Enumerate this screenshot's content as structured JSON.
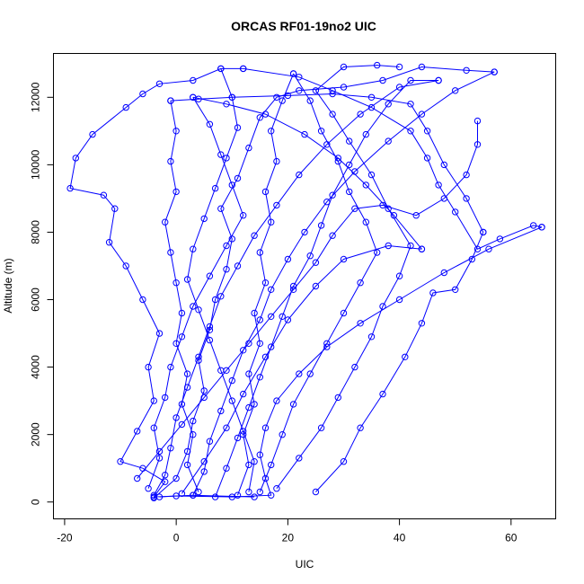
{
  "chart_data": {
    "type": "scatter",
    "title": "ORCAS RF01-19no2 UIC",
    "xlabel": "UIC",
    "ylabel": "Altitude (m)",
    "xlim": [
      -22,
      68
    ],
    "ylim": [
      -500,
      13300
    ],
    "xticks": [
      -20,
      0,
      20,
      40,
      60
    ],
    "yticks": [
      0,
      2000,
      4000,
      6000,
      8000,
      10000,
      12000
    ],
    "grid": false,
    "legend": "none",
    "series_color": "#0000FF",
    "series": [
      {
        "values": [
          {
            "x": 14,
            "y": 150
          },
          {
            "x": 3,
            "y": 200
          },
          {
            "x": -4,
            "y": 150
          },
          {
            "x": -2,
            "y": 600
          },
          {
            "x": -6,
            "y": 1000
          },
          {
            "x": -10,
            "y": 1200
          },
          {
            "x": -7,
            "y": 2100
          },
          {
            "x": -4,
            "y": 3000
          },
          {
            "x": -5,
            "y": 4000
          },
          {
            "x": -3,
            "y": 5000
          },
          {
            "x": -6,
            "y": 6000
          },
          {
            "x": -9,
            "y": 7000
          },
          {
            "x": -12,
            "y": 7700
          },
          {
            "x": -11,
            "y": 8700
          },
          {
            "x": -13,
            "y": 9100
          },
          {
            "x": -19,
            "y": 9300
          },
          {
            "x": -18,
            "y": 10200
          },
          {
            "x": -15,
            "y": 10900
          },
          {
            "x": -9,
            "y": 11700
          },
          {
            "x": -6,
            "y": 12100
          },
          {
            "x": -3,
            "y": 12400
          },
          {
            "x": 3,
            "y": 12500
          },
          {
            "x": 8,
            "y": 12850
          },
          {
            "x": 12,
            "y": 12850
          }
        ]
      },
      {
        "values": [
          {
            "x": 12,
            "y": 12850
          },
          {
            "x": 22,
            "y": 12600
          },
          {
            "x": 28,
            "y": 12200
          },
          {
            "x": 35,
            "y": 11700
          },
          {
            "x": 42,
            "y": 11000
          },
          {
            "x": 45,
            "y": 10200
          },
          {
            "x": 47,
            "y": 9400
          },
          {
            "x": 50,
            "y": 8600
          },
          {
            "x": 54,
            "y": 7500
          },
          {
            "x": 58,
            "y": 7800
          },
          {
            "x": 64,
            "y": 8200
          },
          {
            "x": 65.5,
            "y": 8150
          }
        ]
      },
      {
        "values": [
          {
            "x": 65.5,
            "y": 8150
          },
          {
            "x": 56,
            "y": 7500
          },
          {
            "x": 48,
            "y": 6800
          },
          {
            "x": 40,
            "y": 6000
          },
          {
            "x": 33,
            "y": 5300
          },
          {
            "x": 27,
            "y": 4600
          },
          {
            "x": 22,
            "y": 3800
          },
          {
            "x": 18,
            "y": 3000
          },
          {
            "x": 16,
            "y": 2200
          },
          {
            "x": 15,
            "y": 1400
          },
          {
            "x": 16,
            "y": 700
          },
          {
            "x": 17,
            "y": 200
          },
          {
            "x": 10,
            "y": 150
          },
          {
            "x": 0,
            "y": 180
          },
          {
            "x": -3,
            "y": 150
          }
        ]
      },
      {
        "values": [
          {
            "x": -4,
            "y": 120
          },
          {
            "x": 0,
            "y": 700
          },
          {
            "x": 2,
            "y": 1500
          },
          {
            "x": 3,
            "y": 2400
          },
          {
            "x": 5,
            "y": 3300
          },
          {
            "x": 4,
            "y": 4200
          },
          {
            "x": 6,
            "y": 5100
          },
          {
            "x": 7,
            "y": 6000
          },
          {
            "x": 9,
            "y": 6900
          },
          {
            "x": 10,
            "y": 7800
          },
          {
            "x": 8,
            "y": 8700
          },
          {
            "x": 11,
            "y": 9600
          },
          {
            "x": 13,
            "y": 10500
          },
          {
            "x": 15,
            "y": 11400
          },
          {
            "x": 18,
            "y": 12000
          },
          {
            "x": 22,
            "y": 12200
          },
          {
            "x": 30,
            "y": 12300
          },
          {
            "x": 37,
            "y": 12500
          },
          {
            "x": 44,
            "y": 12900
          },
          {
            "x": 52,
            "y": 12800
          },
          {
            "x": 57,
            "y": 12750
          }
        ]
      },
      {
        "values": [
          {
            "x": 57,
            "y": 12750
          },
          {
            "x": 50,
            "y": 12200
          },
          {
            "x": 44,
            "y": 11500
          },
          {
            "x": 38,
            "y": 10700
          },
          {
            "x": 32,
            "y": 9800
          },
          {
            "x": 27,
            "y": 8900
          },
          {
            "x": 23,
            "y": 8000
          },
          {
            "x": 20,
            "y": 7200
          },
          {
            "x": 17,
            "y": 6300
          },
          {
            "x": 15,
            "y": 5400
          },
          {
            "x": 12,
            "y": 4500
          },
          {
            "x": 10,
            "y": 3600
          },
          {
            "x": 8,
            "y": 2700
          },
          {
            "x": 6,
            "y": 1800
          },
          {
            "x": 5,
            "y": 900
          },
          {
            "x": 3,
            "y": 200
          }
        ]
      },
      {
        "values": [
          {
            "x": 25,
            "y": 300
          },
          {
            "x": 30,
            "y": 1200
          },
          {
            "x": 33,
            "y": 2200
          },
          {
            "x": 37,
            "y": 3200
          },
          {
            "x": 41,
            "y": 4300
          },
          {
            "x": 44,
            "y": 5300
          },
          {
            "x": 46,
            "y": 6200
          },
          {
            "x": 50,
            "y": 6300
          },
          {
            "x": 53,
            "y": 7200
          },
          {
            "x": 55,
            "y": 8000
          }
        ]
      },
      {
        "values": [
          {
            "x": 55,
            "y": 8000
          },
          {
            "x": 52,
            "y": 9000
          },
          {
            "x": 48,
            "y": 10000
          },
          {
            "x": 45,
            "y": 11000
          },
          {
            "x": 42,
            "y": 11800
          },
          {
            "x": 35,
            "y": 12000
          },
          {
            "x": 28,
            "y": 12100
          },
          {
            "x": 20,
            "y": 12050
          },
          {
            "x": 10,
            "y": 12000
          },
          {
            "x": 4,
            "y": 11950
          },
          {
            "x": -1,
            "y": 11900
          }
        ]
      },
      {
        "values": [
          {
            "x": -1,
            "y": 11900
          },
          {
            "x": 0,
            "y": 11000
          },
          {
            "x": -1,
            "y": 10100
          },
          {
            "x": 0,
            "y": 9200
          },
          {
            "x": -2,
            "y": 8300
          },
          {
            "x": -1,
            "y": 7400
          },
          {
            "x": 0,
            "y": 6500
          },
          {
            "x": 1,
            "y": 5600
          },
          {
            "x": 0,
            "y": 4700
          },
          {
            "x": 2,
            "y": 3800
          },
          {
            "x": 1,
            "y": 2900
          },
          {
            "x": 3,
            "y": 2000
          },
          {
            "x": 2,
            "y": 1100
          },
          {
            "x": 4,
            "y": 300
          }
        ]
      },
      {
        "values": [
          {
            "x": 7,
            "y": 150
          },
          {
            "x": 9,
            "y": 1000
          },
          {
            "x": 11,
            "y": 1900
          },
          {
            "x": 13,
            "y": 2800
          },
          {
            "x": 15,
            "y": 3700
          },
          {
            "x": 17,
            "y": 4600
          },
          {
            "x": 19,
            "y": 5500
          },
          {
            "x": 21,
            "y": 6400
          },
          {
            "x": 24,
            "y": 7300
          },
          {
            "x": 26,
            "y": 8200
          },
          {
            "x": 28,
            "y": 9100
          },
          {
            "x": 31,
            "y": 10000
          },
          {
            "x": 34,
            "y": 10900
          },
          {
            "x": 38,
            "y": 11800
          },
          {
            "x": 42,
            "y": 12500
          },
          {
            "x": 47,
            "y": 12500
          }
        ]
      },
      {
        "values": [
          {
            "x": 47,
            "y": 12500
          },
          {
            "x": 40,
            "y": 12300
          },
          {
            "x": 33,
            "y": 11500
          },
          {
            "x": 27,
            "y": 10600
          },
          {
            "x": 22,
            "y": 9700
          },
          {
            "x": 18,
            "y": 8800
          },
          {
            "x": 14,
            "y": 7900
          },
          {
            "x": 11,
            "y": 7000
          },
          {
            "x": 8,
            "y": 6100
          },
          {
            "x": 6,
            "y": 5200
          },
          {
            "x": 4,
            "y": 4300
          },
          {
            "x": 2,
            "y": 3400
          },
          {
            "x": 0,
            "y": 2500
          },
          {
            "x": -1,
            "y": 1600
          },
          {
            "x": -2,
            "y": 800
          },
          {
            "x": -4,
            "y": 200
          }
        ]
      },
      {
        "values": [
          {
            "x": 11,
            "y": 200
          },
          {
            "x": 13,
            "y": 1100
          },
          {
            "x": 12,
            "y": 2000
          },
          {
            "x": 14,
            "y": 2900
          },
          {
            "x": 13,
            "y": 3800
          },
          {
            "x": 15,
            "y": 4700
          },
          {
            "x": 14,
            "y": 5600
          },
          {
            "x": 16,
            "y": 6500
          },
          {
            "x": 15,
            "y": 7400
          },
          {
            "x": 17,
            "y": 8300
          },
          {
            "x": 16,
            "y": 9200
          },
          {
            "x": 18,
            "y": 10100
          },
          {
            "x": 17,
            "y": 11000
          },
          {
            "x": 19,
            "y": 11900
          },
          {
            "x": 21,
            "y": 12700
          }
        ]
      },
      {
        "values": [
          {
            "x": 21,
            "y": 12700
          },
          {
            "x": 24,
            "y": 11900
          },
          {
            "x": 26,
            "y": 11000
          },
          {
            "x": 29,
            "y": 10100
          },
          {
            "x": 31,
            "y": 9200
          },
          {
            "x": 34,
            "y": 8300
          },
          {
            "x": 36,
            "y": 7400
          },
          {
            "x": 33,
            "y": 6500
          },
          {
            "x": 30,
            "y": 5600
          },
          {
            "x": 27,
            "y": 4700
          },
          {
            "x": 24,
            "y": 3800
          },
          {
            "x": 21,
            "y": 2900
          },
          {
            "x": 19,
            "y": 2000
          },
          {
            "x": 17,
            "y": 1100
          },
          {
            "x": 15,
            "y": 300
          }
        ]
      },
      {
        "values": [
          {
            "x": 1,
            "y": 250
          },
          {
            "x": 5,
            "y": 1200
          },
          {
            "x": 9,
            "y": 2200
          },
          {
            "x": 12,
            "y": 3200
          },
          {
            "x": 16,
            "y": 4300
          },
          {
            "x": 20,
            "y": 5400
          },
          {
            "x": 25,
            "y": 6400
          },
          {
            "x": 30,
            "y": 7200
          },
          {
            "x": 38,
            "y": 7600
          },
          {
            "x": 44,
            "y": 7500
          }
        ]
      },
      {
        "values": [
          {
            "x": 44,
            "y": 7500
          },
          {
            "x": 39,
            "y": 8500
          },
          {
            "x": 34,
            "y": 9400
          },
          {
            "x": 29,
            "y": 10200
          },
          {
            "x": 23,
            "y": 10900
          },
          {
            "x": 16,
            "y": 11500
          },
          {
            "x": 9,
            "y": 11800
          },
          {
            "x": 3,
            "y": 12000
          }
        ]
      },
      {
        "values": [
          {
            "x": 3,
            "y": 12000
          },
          {
            "x": 6,
            "y": 11200
          },
          {
            "x": 8,
            "y": 10300
          },
          {
            "x": 10,
            "y": 9400
          },
          {
            "x": 12,
            "y": 8500
          },
          {
            "x": 9,
            "y": 7600
          },
          {
            "x": 6,
            "y": 6700
          },
          {
            "x": 3,
            "y": 5800
          },
          {
            "x": 1,
            "y": 4900
          },
          {
            "x": -1,
            "y": 4000
          },
          {
            "x": -2,
            "y": 3100
          },
          {
            "x": -4,
            "y": 2200
          },
          {
            "x": -3,
            "y": 1300
          },
          {
            "x": -5,
            "y": 400
          }
        ]
      },
      {
        "values": [
          {
            "x": 18,
            "y": 400
          },
          {
            "x": 22,
            "y": 1300
          },
          {
            "x": 26,
            "y": 2200
          },
          {
            "x": 29,
            "y": 3100
          },
          {
            "x": 32,
            "y": 4000
          },
          {
            "x": 35,
            "y": 4900
          },
          {
            "x": 37,
            "y": 5800
          },
          {
            "x": 40,
            "y": 6700
          },
          {
            "x": 42,
            "y": 7600
          },
          {
            "x": 38,
            "y": 8700
          },
          {
            "x": 35,
            "y": 9700
          },
          {
            "x": 31,
            "y": 10700
          },
          {
            "x": 28,
            "y": 11500
          },
          {
            "x": 25,
            "y": 12200
          },
          {
            "x": 30,
            "y": 12900
          },
          {
            "x": 36,
            "y": 12950
          },
          {
            "x": 40,
            "y": 12900
          }
        ]
      },
      {
        "values": [
          {
            "x": 8,
            "y": 12850
          },
          {
            "x": 10,
            "y": 12000
          },
          {
            "x": 11,
            "y": 11100
          },
          {
            "x": 9,
            "y": 10200
          },
          {
            "x": 7,
            "y": 9300
          },
          {
            "x": 5,
            "y": 8400
          },
          {
            "x": 3,
            "y": 7500
          },
          {
            "x": 2,
            "y": 6600
          },
          {
            "x": 4,
            "y": 5700
          },
          {
            "x": 6,
            "y": 4800
          },
          {
            "x": 8,
            "y": 3900
          },
          {
            "x": 10,
            "y": 3000
          },
          {
            "x": 12,
            "y": 2100
          },
          {
            "x": 14,
            "y": 1200
          },
          {
            "x": 13,
            "y": 300
          }
        ]
      },
      {
        "values": [
          {
            "x": -7,
            "y": 700
          },
          {
            "x": -3,
            "y": 1500
          },
          {
            "x": 1,
            "y": 2300
          },
          {
            "x": 5,
            "y": 3100
          },
          {
            "x": 9,
            "y": 3900
          },
          {
            "x": 13,
            "y": 4700
          },
          {
            "x": 17,
            "y": 5500
          },
          {
            "x": 21,
            "y": 6300
          },
          {
            "x": 25,
            "y": 7100
          },
          {
            "x": 28,
            "y": 7900
          },
          {
            "x": 32,
            "y": 8700
          },
          {
            "x": 37,
            "y": 8800
          },
          {
            "x": 43,
            "y": 8500
          },
          {
            "x": 48,
            "y": 9000
          },
          {
            "x": 52,
            "y": 9700
          },
          {
            "x": 54,
            "y": 10600
          },
          {
            "x": 54,
            "y": 11300
          }
        ]
      }
    ]
  }
}
